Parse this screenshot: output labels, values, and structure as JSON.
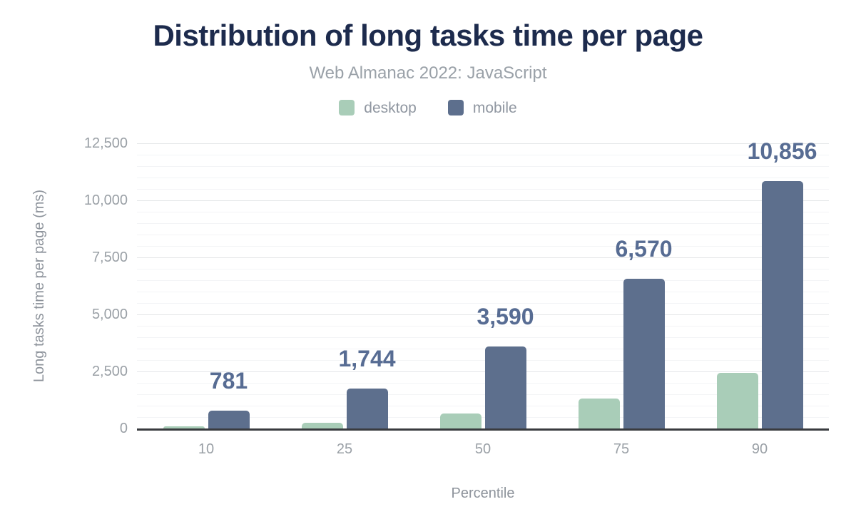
{
  "header": {
    "title": "Distribution of long tasks time per page",
    "subtitle": "Web Almanac 2022: JavaScript"
  },
  "legend": [
    {
      "label": "desktop",
      "color": "#a9cdb8"
    },
    {
      "label": "mobile",
      "color": "#5d6f8d"
    }
  ],
  "chart_data": {
    "type": "bar",
    "title": "Distribution of long tasks time per page",
    "subtitle": "Web Almanac 2022: JavaScript",
    "categories": [
      "10",
      "25",
      "50",
      "75",
      "90"
    ],
    "series": [
      {
        "name": "desktop",
        "color": "#a9cdb8",
        "values": [
          100,
          240,
          670,
          1330,
          2430
        ]
      },
      {
        "name": "mobile",
        "color": "#5d6f8d",
        "values": [
          781,
          1744,
          3590,
          6570,
          10856
        ],
        "data_labels": [
          "781",
          "1,744",
          "3,590",
          "6,570",
          "10,856"
        ]
      }
    ],
    "xlabel": "Percentile",
    "ylabel": "Long tasks time per page (ms)",
    "ylim": [
      0,
      12500
    ],
    "y_major_step": 2500,
    "y_minor_step": 500,
    "y_ticks": [
      {
        "value": 0,
        "label": "0"
      },
      {
        "value": 2500,
        "label": "2,500"
      },
      {
        "value": 5000,
        "label": "5,000"
      },
      {
        "value": 7500,
        "label": "7,500"
      },
      {
        "value": 10000,
        "label": "10,000"
      },
      {
        "value": 12500,
        "label": "12,500"
      }
    ],
    "grid": "horizontal",
    "legend_position": "top"
  },
  "colors": {
    "background": "#ffffff",
    "title": "#1d2b4d",
    "subtitle": "#9aa1a8",
    "axis_text": "#9aa0a6",
    "axis_title_text": "#8d939b",
    "data_label": "#576c93",
    "axis_line": "#393b3f",
    "gridline_major": "#e4e6e8",
    "gridline_minor": "#f3f4f6"
  }
}
